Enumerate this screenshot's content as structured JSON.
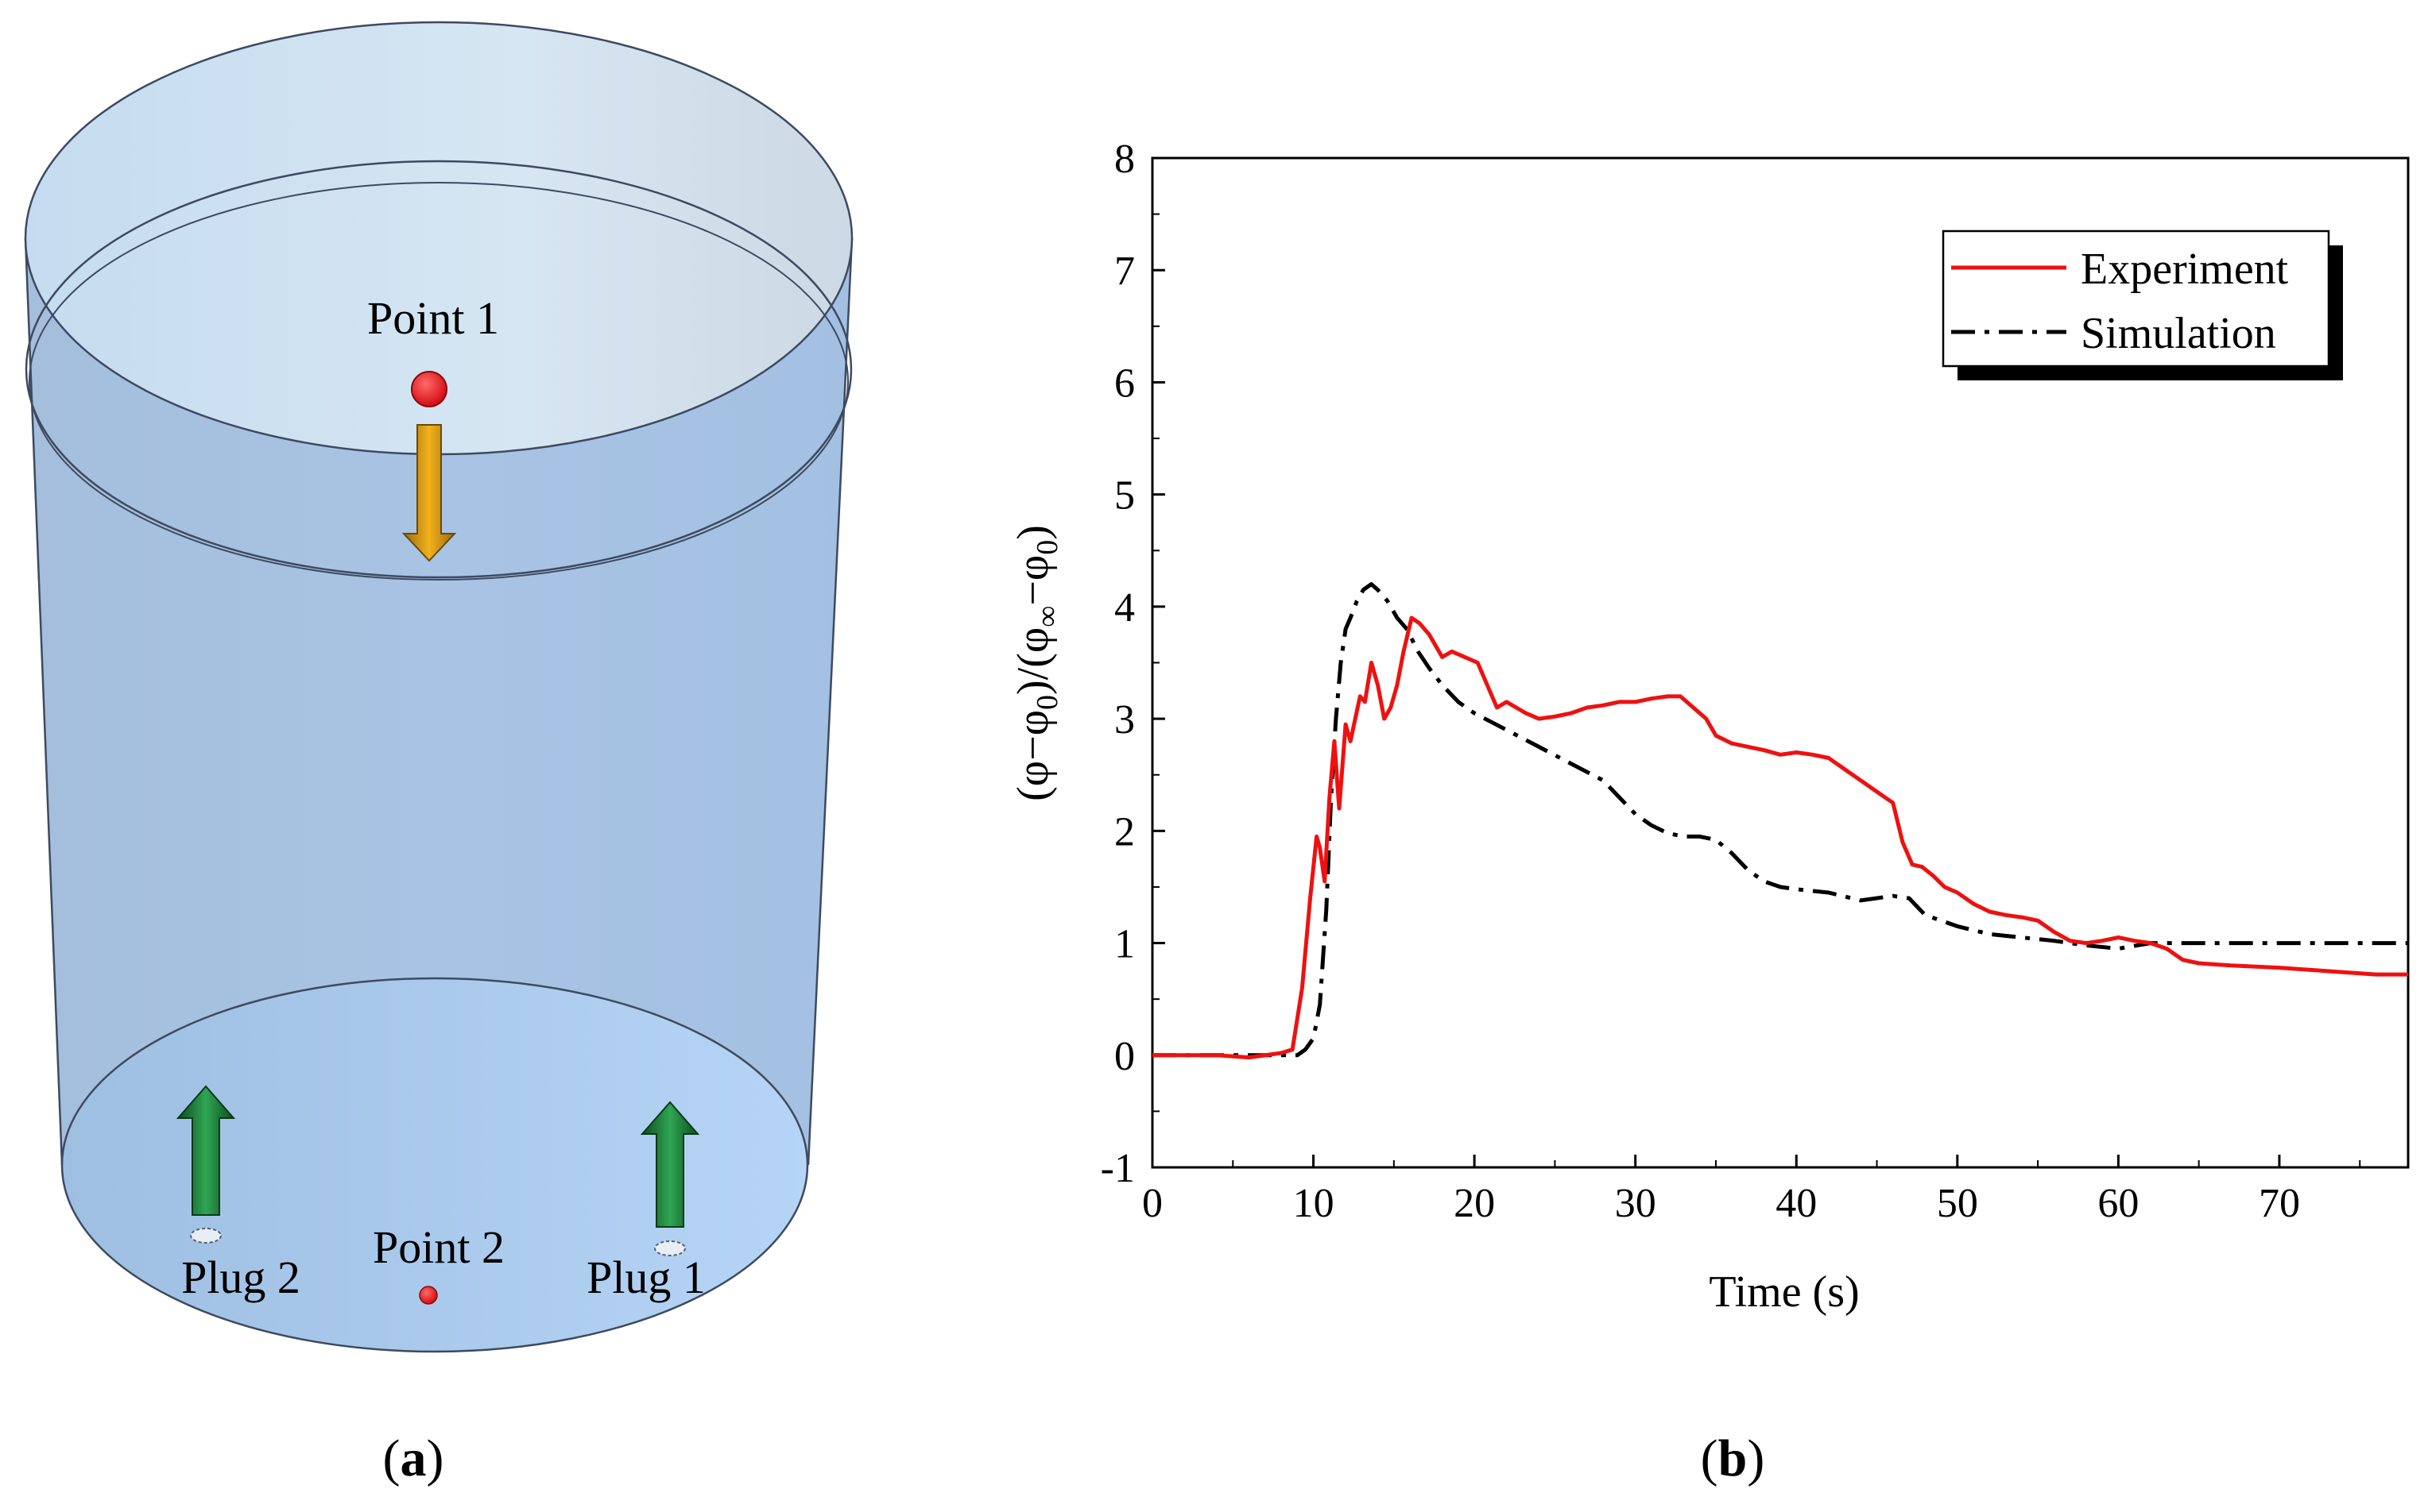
{
  "panel_a": {
    "point1_label": "Point 1",
    "point2_label": "Point 2",
    "plug1_label": "Plug 1",
    "plug2_label": "Plug 2",
    "caption": "a",
    "colors": {
      "marker": "#e0141a",
      "arrow_down": "#f2b21c",
      "arrow_up": "#1e8a3c",
      "tank_fill": "#a9c8e8"
    }
  },
  "panel_b": {
    "caption": "b"
  },
  "chart_data": {
    "type": "line",
    "title": "",
    "xlabel": "Time (s)",
    "ylabel": "(φ−φ0)/(φ∞−φ0)",
    "xlim": [
      0,
      78
    ],
    "ylim": [
      -1,
      8
    ],
    "xticks": [
      0,
      10,
      20,
      30,
      40,
      50,
      60,
      70
    ],
    "yticks": [
      -1,
      0,
      1,
      2,
      3,
      4,
      5,
      6,
      7,
      8
    ],
    "legend_position": "top-right",
    "series": [
      {
        "name": "Experiment",
        "color": "#ee1111",
        "style": "solid",
        "x": [
          0,
          2,
          4,
          6,
          8,
          8.7,
          9.3,
          9.8,
          10.2,
          10.4,
          10.7,
          11.0,
          11.3,
          11.6,
          12.0,
          12.3,
          12.6,
          12.9,
          13.2,
          13.6,
          14.0,
          14.4,
          14.8,
          15.2,
          15.6,
          16.1,
          16.6,
          17.2,
          18.0,
          18.6,
          19.4,
          20.2,
          20.8,
          21.4,
          22.0,
          22.6,
          23.2,
          24.0,
          25.0,
          26.0,
          27.0,
          28.0,
          29.0,
          30.0,
          31.0,
          32.0,
          32.8,
          33.6,
          34.4,
          35.0,
          36.0,
          37.0,
          38.0,
          39.0,
          40.0,
          41.0,
          42.0,
          43.0,
          44.0,
          45.0,
          46.0,
          46.6,
          47.2,
          47.8,
          48.5,
          49.2,
          50.0,
          51.0,
          52.0,
          53.0,
          54.0,
          55.0,
          56.0,
          57.0,
          58.0,
          59.0,
          60.0,
          61.0,
          62.0,
          63.0,
          64.0,
          65.0,
          67.0,
          70.0,
          73.0,
          76.0,
          78.0
        ],
        "y": [
          0,
          0,
          0,
          -0.02,
          0.02,
          0.05,
          0.6,
          1.4,
          1.95,
          1.85,
          1.55,
          2.3,
          2.8,
          2.2,
          2.95,
          2.8,
          3.0,
          3.2,
          3.15,
          3.5,
          3.3,
          3.0,
          3.1,
          3.3,
          3.6,
          3.9,
          3.85,
          3.75,
          3.55,
          3.6,
          3.55,
          3.5,
          3.3,
          3.1,
          3.15,
          3.1,
          3.05,
          3.0,
          3.02,
          3.05,
          3.1,
          3.12,
          3.15,
          3.15,
          3.18,
          3.2,
          3.2,
          3.1,
          3.0,
          2.85,
          2.78,
          2.75,
          2.72,
          2.68,
          2.7,
          2.68,
          2.65,
          2.55,
          2.45,
          2.35,
          2.25,
          1.9,
          1.7,
          1.68,
          1.6,
          1.5,
          1.45,
          1.35,
          1.28,
          1.25,
          1.23,
          1.2,
          1.1,
          1.02,
          1.0,
          1.02,
          1.05,
          1.02,
          1.0,
          0.95,
          0.85,
          0.82,
          0.8,
          0.78,
          0.75,
          0.72,
          0.72
        ]
      },
      {
        "name": "Simulation",
        "color": "#000000",
        "style": "dash-dot",
        "x": [
          0,
          4,
          9.0,
          9.5,
          10.0,
          10.4,
          10.8,
          11.1,
          11.4,
          11.7,
          12.0,
          12.3,
          12.7,
          13.1,
          13.6,
          14.0,
          14.6,
          15.2,
          15.8,
          16.5,
          17.2,
          18.0,
          19.0,
          20.0,
          22.0,
          24.0,
          26.0,
          28.0,
          29.0,
          30.0,
          31.0,
          32.0,
          33.0,
          34.0,
          35.0,
          36.0,
          37.0,
          38.0,
          39.0,
          40.0,
          42.0,
          44.0,
          46.0,
          47.0,
          48.0,
          50.0,
          52.0,
          54.0,
          56.0,
          58.0,
          60.0,
          62.0,
          63.0,
          66.0,
          70.0,
          74.0,
          78.0
        ],
        "y": [
          0,
          0,
          0,
          0.05,
          0.15,
          0.45,
          1.3,
          2.3,
          3.0,
          3.5,
          3.8,
          3.9,
          4.05,
          4.15,
          4.2,
          4.15,
          4.05,
          3.9,
          3.8,
          3.6,
          3.45,
          3.3,
          3.15,
          3.05,
          2.9,
          2.75,
          2.6,
          2.45,
          2.3,
          2.15,
          2.05,
          1.98,
          1.95,
          1.95,
          1.92,
          1.8,
          1.65,
          1.55,
          1.5,
          1.48,
          1.45,
          1.38,
          1.42,
          1.4,
          1.25,
          1.15,
          1.08,
          1.05,
          1.02,
          0.98,
          0.95,
          1.0,
          1.0,
          1.0,
          1.0,
          1.0,
          1.0
        ]
      }
    ]
  }
}
